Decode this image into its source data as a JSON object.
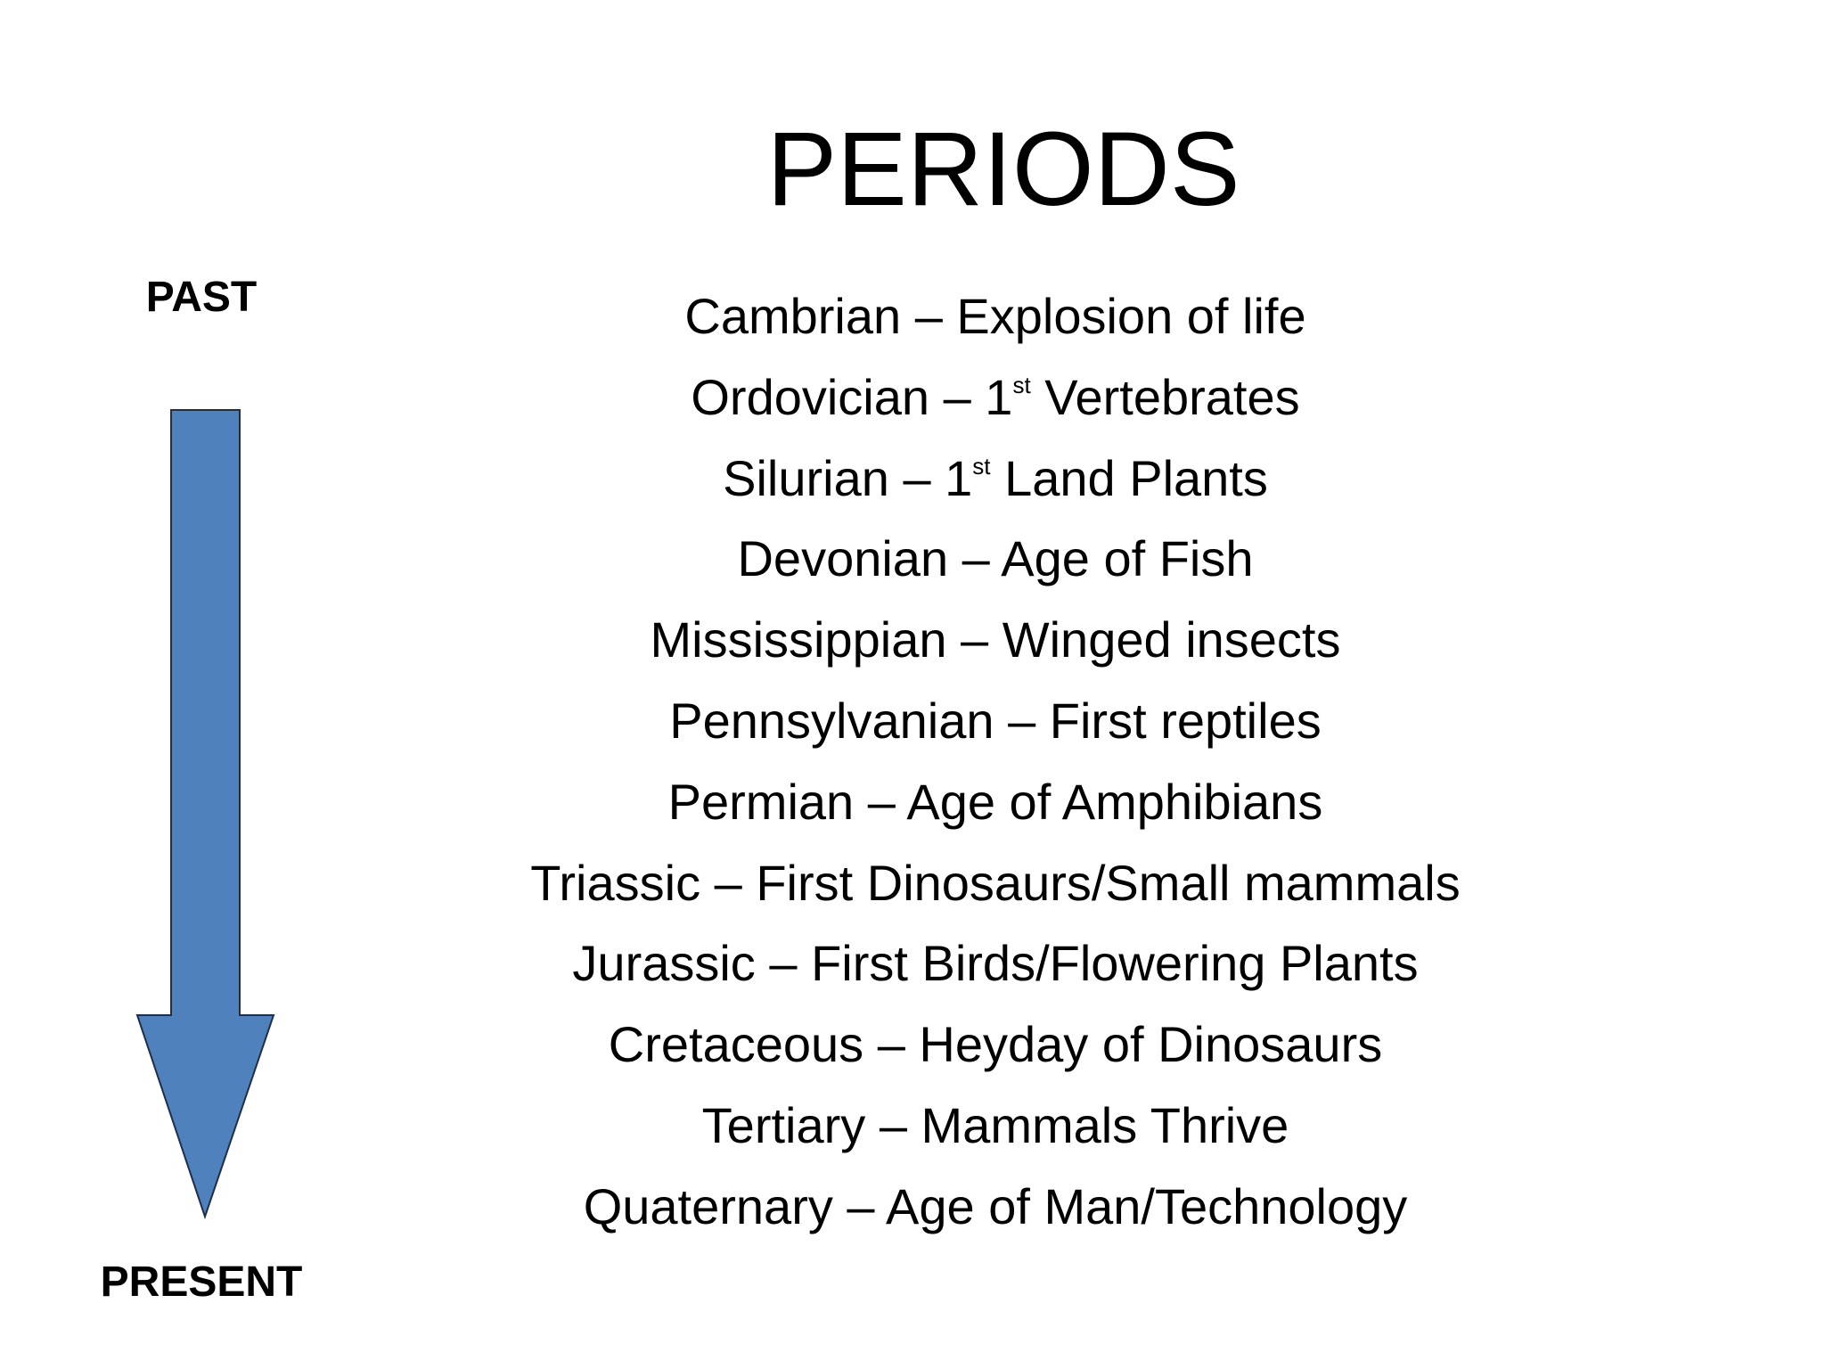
{
  "title": "PERIODS",
  "timeline": {
    "start_label": "PAST",
    "end_label": "PRESENT"
  },
  "items": [
    {
      "text": "Cambrian – Explosion of life"
    },
    {
      "text": "Ordovician – 1",
      "sup": "st",
      "text_after": " Vertebrates"
    },
    {
      "text": "Silurian – 1",
      "sup": "st",
      "text_after": " Land Plants"
    },
    {
      "text": "Devonian – Age of Fish"
    },
    {
      "text": "Mississippian – Winged insects"
    },
    {
      "text": "Pennsylvanian – First reptiles"
    },
    {
      "text": "Permian – Age of Amphibians"
    },
    {
      "text": "Triassic – First Dinosaurs/Small mammals"
    },
    {
      "text": "Jurassic – First Birds/Flowering Plants"
    },
    {
      "text": "Cretaceous – Heyday of Dinosaurs"
    },
    {
      "text": "Tertiary – Mammals Thrive"
    },
    {
      "text": "Quaternary – Age of Man/Technology"
    }
  ]
}
